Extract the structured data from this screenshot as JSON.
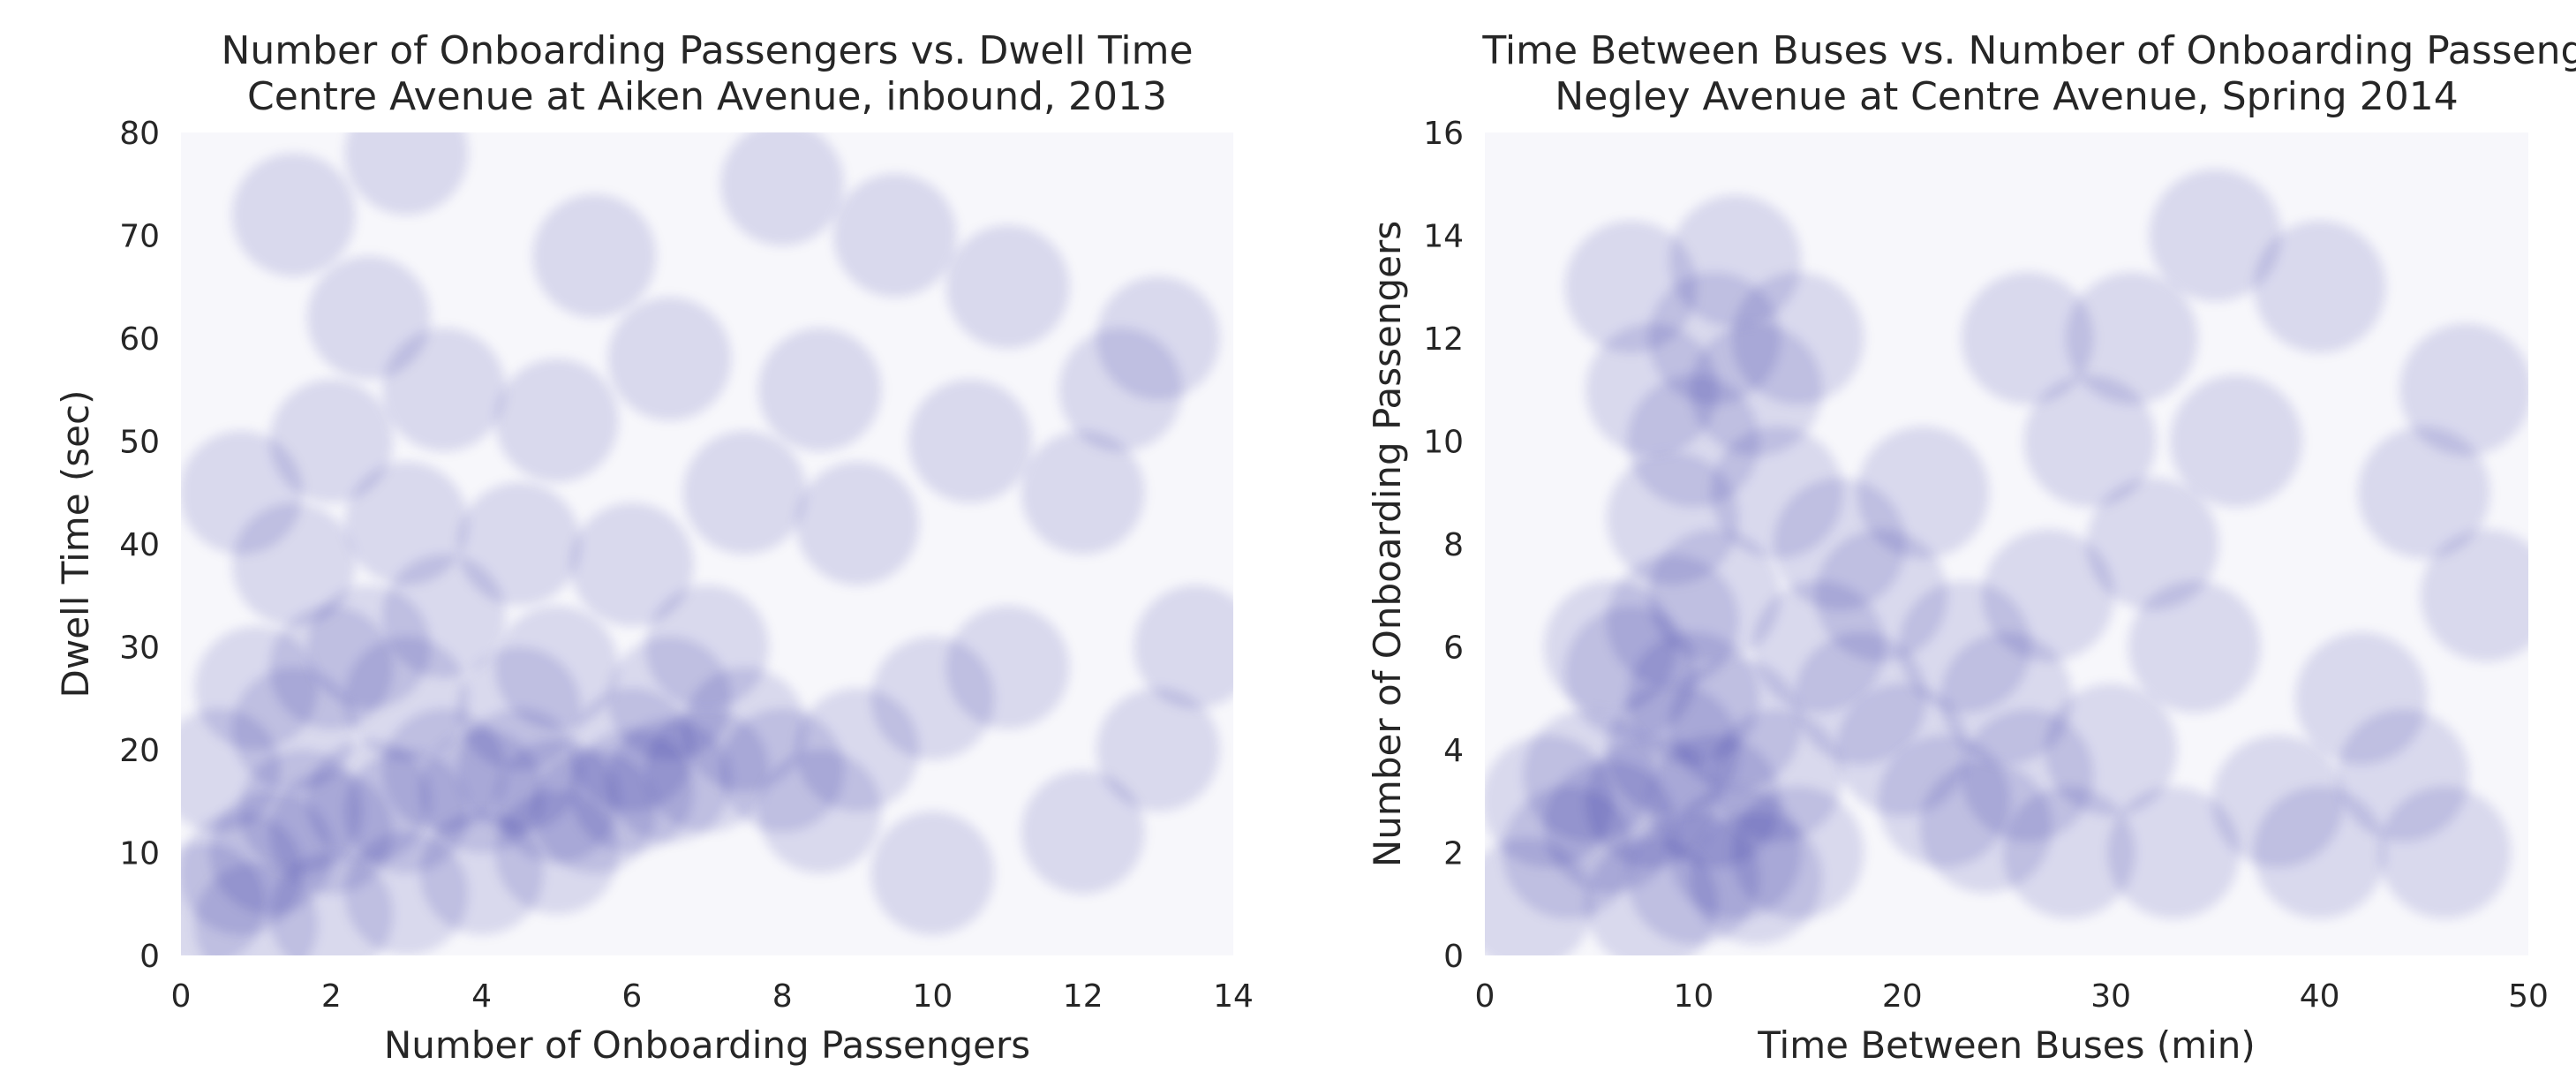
{
  "colors": {
    "marker": "#0d0a8c",
    "plot_background": "#f7f7fb",
    "text": "#262626"
  },
  "chart_data": [
    {
      "type": "scatter",
      "title": "Number of Onboarding Passengers vs. Dwell Time",
      "subtitle": "Centre Avenue at Aiken Avenue, inbound, 2013",
      "xlabel": "Number of Onboarding Passengers",
      "ylabel": "Dwell Time (sec)",
      "xlim": [
        0,
        14
      ],
      "ylim": [
        0,
        80
      ],
      "xticks": [
        0,
        2,
        4,
        6,
        8,
        10,
        12,
        14
      ],
      "yticks": [
        0,
        10,
        20,
        30,
        40,
        50,
        60,
        70,
        80
      ],
      "grid": false,
      "marker_style": "large translucent circles",
      "points": [
        [
          0.3,
          5
        ],
        [
          0.8,
          8
        ],
        [
          1.2,
          10
        ],
        [
          1.6,
          14
        ],
        [
          2.0,
          12
        ],
        [
          2.5,
          15
        ],
        [
          3.0,
          14
        ],
        [
          3.5,
          18
        ],
        [
          4.0,
          16
        ],
        [
          4.5,
          18
        ],
        [
          5.0,
          15
        ],
        [
          5.5,
          14
        ],
        [
          6.0,
          16
        ],
        [
          6.5,
          17
        ],
        [
          7.0,
          18
        ],
        [
          1.0,
          3
        ],
        [
          2.0,
          4
        ],
        [
          3.0,
          6
        ],
        [
          4.0,
          8
        ],
        [
          5.0,
          10
        ],
        [
          1.5,
          22
        ],
        [
          3.0,
          25
        ],
        [
          4.5,
          24
        ],
        [
          2.0,
          28
        ],
        [
          6.0,
          20
        ],
        [
          0.5,
          18
        ],
        [
          1.0,
          26
        ],
        [
          2.5,
          30
        ],
        [
          3.5,
          33
        ],
        [
          5.0,
          28
        ],
        [
          6.5,
          25
        ],
        [
          7.5,
          22
        ],
        [
          8.0,
          18
        ],
        [
          8.5,
          14
        ],
        [
          9.0,
          20
        ],
        [
          10.0,
          25
        ],
        [
          11.0,
          28
        ],
        [
          7.0,
          30
        ],
        [
          1.5,
          38
        ],
        [
          3.0,
          42
        ],
        [
          4.5,
          40
        ],
        [
          6.0,
          38
        ],
        [
          2.0,
          50
        ],
        [
          5.0,
          52
        ],
        [
          7.5,
          45
        ],
        [
          9.0,
          42
        ],
        [
          0.8,
          45
        ],
        [
          3.5,
          55
        ],
        [
          2.5,
          62
        ],
        [
          6.5,
          58
        ],
        [
          8.5,
          55
        ],
        [
          10.5,
          50
        ],
        [
          12.0,
          45
        ],
        [
          13.0,
          20
        ],
        [
          12.5,
          55
        ],
        [
          11.0,
          65
        ],
        [
          9.5,
          70
        ],
        [
          5.5,
          68
        ],
        [
          1.5,
          72
        ],
        [
          13.5,
          30
        ],
        [
          10.0,
          8
        ],
        [
          12.0,
          12
        ],
        [
          13.0,
          60
        ],
        [
          8.0,
          75
        ],
        [
          3.0,
          78
        ]
      ]
    },
    {
      "type": "scatter",
      "title": "Time Between Buses vs. Number of Onboarding Passengers",
      "subtitle": "Negley Avenue at Centre Avenue, Spring 2014",
      "xlabel": "Time Between Buses (min)",
      "ylabel": "Number of Onboarding Passengers",
      "xlim": [
        0,
        50
      ],
      "ylim": [
        0,
        16
      ],
      "xticks": [
        0,
        10,
        20,
        30,
        40,
        50
      ],
      "yticks": [
        0,
        2,
        4,
        6,
        8,
        10,
        12,
        14,
        16
      ],
      "grid": false,
      "marker_style": "large translucent circles",
      "points": [
        [
          2,
          1
        ],
        [
          4,
          2
        ],
        [
          6,
          2.5
        ],
        [
          8,
          3
        ],
        [
          9,
          4
        ],
        [
          10,
          5
        ],
        [
          7,
          5.5
        ],
        [
          9,
          6.5
        ],
        [
          11,
          3
        ],
        [
          12,
          2
        ],
        [
          13,
          1.5
        ],
        [
          5,
          3.5
        ],
        [
          3,
          3
        ],
        [
          8,
          1
        ],
        [
          10,
          1.5
        ],
        [
          14,
          3.5
        ],
        [
          15,
          2
        ],
        [
          12,
          4.5
        ],
        [
          6,
          6
        ],
        [
          11,
          7
        ],
        [
          9,
          8.5
        ],
        [
          10,
          10
        ],
        [
          11,
          12
        ],
        [
          12,
          13.5
        ],
        [
          13,
          11
        ],
        [
          8,
          11
        ],
        [
          14,
          9
        ],
        [
          16,
          6
        ],
        [
          18,
          5
        ],
        [
          20,
          4
        ],
        [
          22,
          3
        ],
        [
          24,
          2.5
        ],
        [
          26,
          3.5
        ],
        [
          28,
          2
        ],
        [
          17,
          8
        ],
        [
          19,
          7
        ],
        [
          21,
          9
        ],
        [
          23,
          6
        ],
        [
          25,
          5
        ],
        [
          27,
          7
        ],
        [
          15,
          12
        ],
        [
          7,
          13
        ],
        [
          30,
          4
        ],
        [
          32,
          8
        ],
        [
          34,
          6
        ],
        [
          36,
          10
        ],
        [
          38,
          3
        ],
        [
          40,
          2
        ],
        [
          42,
          5
        ],
        [
          44,
          3.5
        ],
        [
          46,
          2
        ],
        [
          48,
          7
        ],
        [
          31,
          12
        ],
        [
          35,
          14
        ],
        [
          40,
          13
        ],
        [
          45,
          9
        ],
        [
          47,
          11
        ],
        [
          29,
          10
        ],
        [
          26,
          12
        ],
        [
          33,
          2
        ]
      ]
    }
  ]
}
